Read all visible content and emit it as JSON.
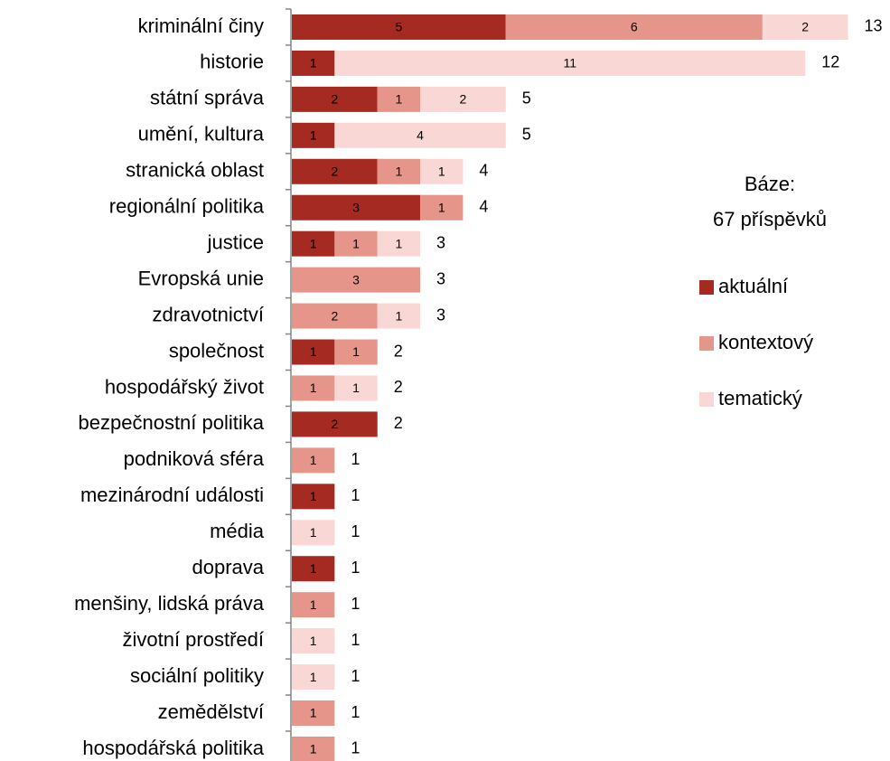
{
  "chart_data": {
    "type": "stacked-bar-horizontal",
    "categories": [
      "kriminální činy",
      "historie",
      "státní správa",
      "umění, kultura",
      "stranická oblast",
      "regionální politika",
      "justice",
      "Evropská unie",
      "zdravotnictví",
      "společnost",
      "hospodářský život",
      "bezpečnostní politika",
      "podniková sféra",
      "mezinárodní události",
      "média",
      "doprava",
      "menšiny, lidská práva",
      "životní prostředí",
      "sociální politiky",
      "zemědělství",
      "hospodářská politika"
    ],
    "series": [
      {
        "name": "aktuální",
        "color": "#a52a21",
        "values": [
          5,
          1,
          2,
          1,
          2,
          3,
          1,
          0,
          0,
          1,
          0,
          2,
          0,
          1,
          0,
          1,
          0,
          0,
          0,
          0,
          0
        ]
      },
      {
        "name": "kontextový",
        "color": "#e6958a",
        "values": [
          6,
          0,
          1,
          0,
          1,
          1,
          1,
          3,
          2,
          1,
          1,
          0,
          1,
          0,
          0,
          0,
          1,
          0,
          0,
          1,
          1
        ]
      },
      {
        "name": "tematický",
        "color": "#f8d7d4",
        "values": [
          2,
          11,
          2,
          4,
          1,
          0,
          1,
          0,
          1,
          0,
          1,
          0,
          0,
          0,
          1,
          0,
          0,
          1,
          1,
          0,
          0
        ]
      }
    ],
    "totals": [
      13,
      12,
      5,
      5,
      4,
      4,
      3,
      3,
      3,
      2,
      2,
      2,
      1,
      1,
      1,
      1,
      1,
      1,
      1,
      1,
      1
    ],
    "annotation": [
      "Báze:",
      "67 příspěvků"
    ],
    "legend": "right"
  }
}
